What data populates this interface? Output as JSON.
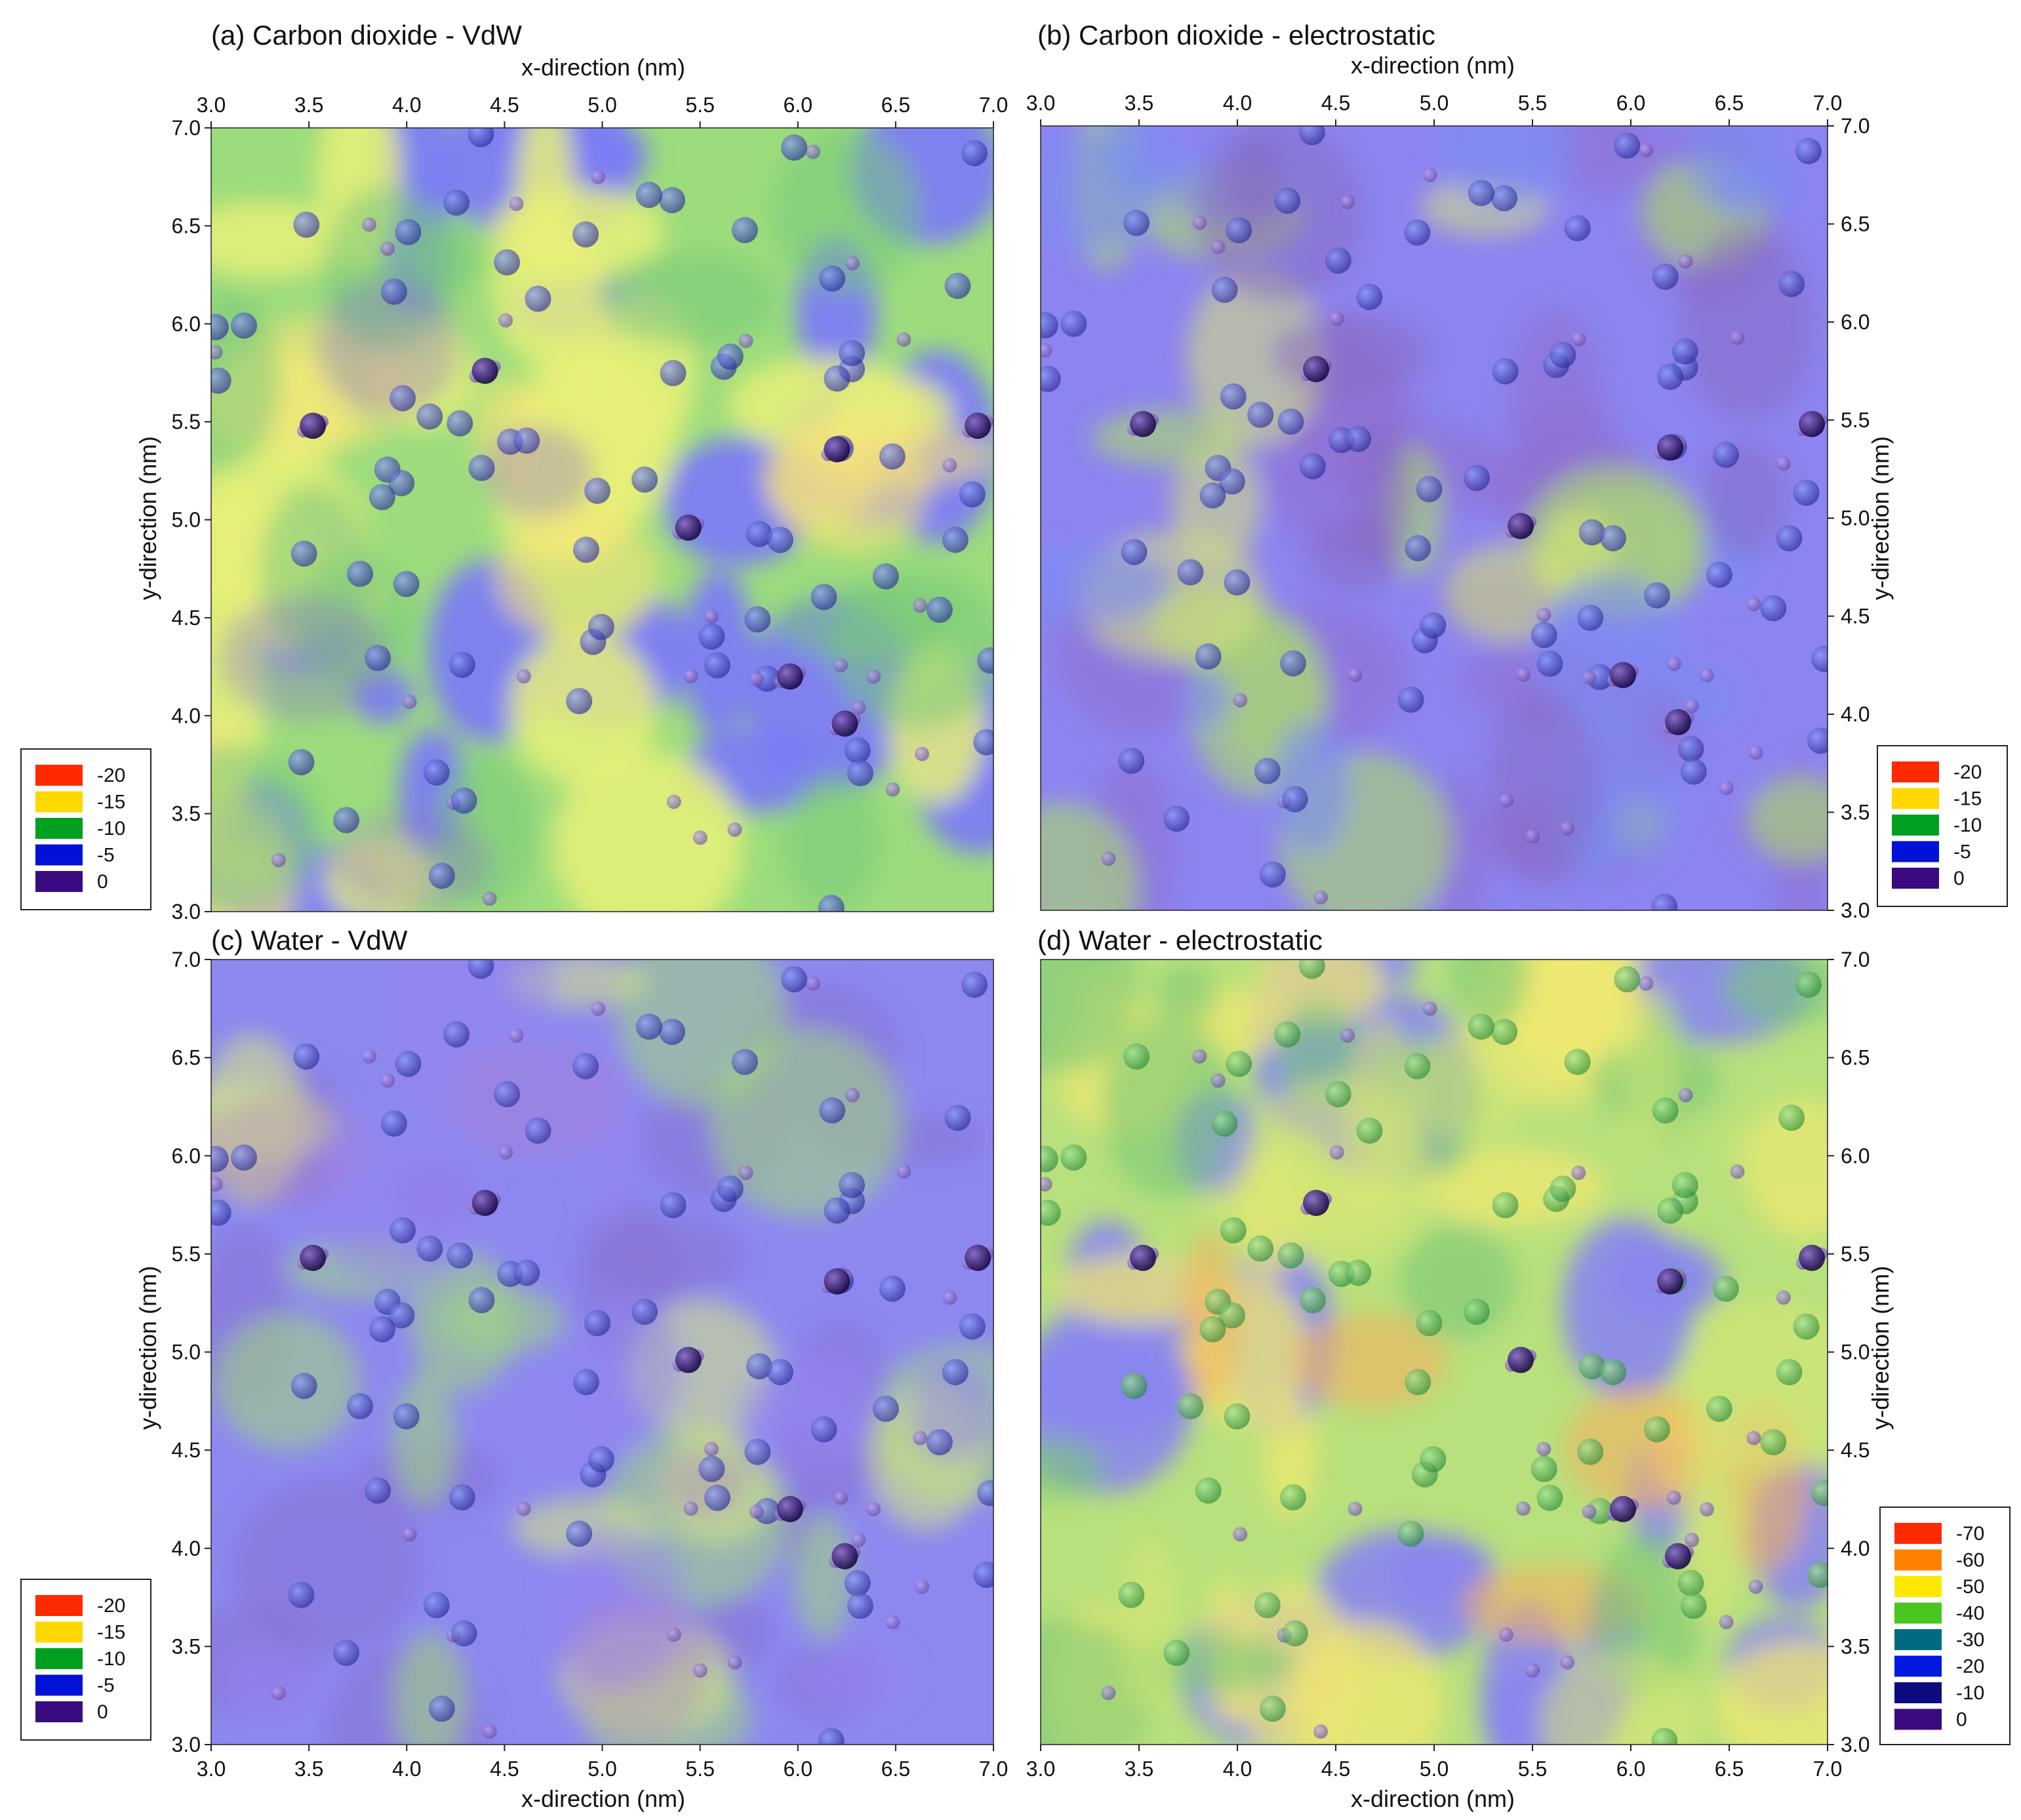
{
  "figure": {
    "panels": [
      {
        "id": "a",
        "title": "(a) Carbon dioxide - VdW",
        "top_xlabel": "x-direction (nm)",
        "bottom_xlabel": "",
        "left_ylabel": "y-direction (nm)",
        "right_ylabel": ""
      },
      {
        "id": "b",
        "title": "(b) Carbon dioxide - electrostatic",
        "top_xlabel": "x-direction (nm)",
        "bottom_xlabel": "",
        "left_ylabel": "",
        "right_ylabel": "y-direction (nm)"
      },
      {
        "id": "c",
        "title": "(c) Water - VdW",
        "top_xlabel": "",
        "bottom_xlabel": "x-direction (nm)",
        "left_ylabel": "y-direction (nm)",
        "right_ylabel": ""
      },
      {
        "id": "d",
        "title": "(d) Water - electrostatic",
        "top_xlabel": "",
        "bottom_xlabel": "x-direction (nm)",
        "left_ylabel": "",
        "right_ylabel": "y-direction (nm)"
      }
    ],
    "tick_labels": [
      "3.0",
      "3.5",
      "4.0",
      "4.5",
      "5.0",
      "5.5",
      "6.0",
      "6.5",
      "7.0"
    ],
    "legends": {
      "vdw": [
        {
          "label": "-20",
          "color": "#ff2a00"
        },
        {
          "label": "-15",
          "color": "#ffd800"
        },
        {
          "label": "-10",
          "color": "#00a020"
        },
        {
          "label": "-5",
          "color": "#0012d8"
        },
        {
          "label": "0",
          "color": "#3a0a80"
        }
      ],
      "water_es": [
        {
          "label": "-70",
          "color": "#ff2a00"
        },
        {
          "label": "-60",
          "color": "#ff8000"
        },
        {
          "label": "-50",
          "color": "#ffe800"
        },
        {
          "label": "-40",
          "color": "#48c81e"
        },
        {
          "label": "-30",
          "color": "#006a80"
        },
        {
          "label": "-20",
          "color": "#0018e0"
        },
        {
          "label": "-10",
          "color": "#0c0c80"
        },
        {
          "label": "0",
          "color": "#3a0a80"
        }
      ]
    }
  },
  "chart_data": [
    {
      "type": "heatmap",
      "title": "(a) Carbon dioxide - VdW",
      "xlabel": "x-direction (nm)",
      "ylabel": "y-direction (nm)",
      "xlim": [
        3.0,
        7.0
      ],
      "ylim": [
        3.0,
        7.0
      ],
      "xticks": [
        3.0,
        3.5,
        4.0,
        4.5,
        5.0,
        5.5,
        6.0,
        6.5,
        7.0
      ],
      "yticks": [
        3.0,
        3.5,
        4.0,
        4.5,
        5.0,
        5.5,
        6.0,
        6.5,
        7.0
      ],
      "colorbar": {
        "levels": [
          -20,
          -15,
          -10,
          -5,
          0
        ],
        "colors": [
          "#ff2a00",
          "#ffd800",
          "#00a020",
          "#0012d8",
          "#3a0a80"
        ]
      },
      "colorbar_position": "left",
      "dominant_range": [
        -15,
        -5
      ]
    },
    {
      "type": "heatmap",
      "title": "(b) Carbon dioxide - electrostatic",
      "xlabel": "x-direction (nm)",
      "ylabel": "y-direction (nm)",
      "xlim": [
        3.0,
        7.0
      ],
      "ylim": [
        3.0,
        7.0
      ],
      "xticks": [
        3.0,
        3.5,
        4.0,
        4.5,
        5.0,
        5.5,
        6.0,
        6.5,
        7.0
      ],
      "yticks": [
        3.0,
        3.5,
        4.0,
        4.5,
        5.0,
        5.5,
        6.0,
        6.5,
        7.0
      ],
      "colorbar": {
        "levels": [
          -20,
          -15,
          -10,
          -5,
          0
        ],
        "colors": [
          "#ff2a00",
          "#ffd800",
          "#00a020",
          "#0012d8",
          "#3a0a80"
        ]
      },
      "colorbar_position": "right",
      "dominant_range": [
        -10,
        0
      ]
    },
    {
      "type": "heatmap",
      "title": "(c) Water - VdW",
      "xlabel": "x-direction (nm)",
      "ylabel": "y-direction (nm)",
      "xlim": [
        3.0,
        7.0
      ],
      "ylim": [
        3.0,
        7.0
      ],
      "xticks": [
        3.0,
        3.5,
        4.0,
        4.5,
        5.0,
        5.5,
        6.0,
        6.5,
        7.0
      ],
      "yticks": [
        3.0,
        3.5,
        4.0,
        4.5,
        5.0,
        5.5,
        6.0,
        6.5,
        7.0
      ],
      "colorbar": {
        "levels": [
          -20,
          -15,
          -10,
          -5,
          0
        ],
        "colors": [
          "#ff2a00",
          "#ffd800",
          "#00a020",
          "#0012d8",
          "#3a0a80"
        ]
      },
      "colorbar_position": "left",
      "dominant_range": [
        -10,
        0
      ]
    },
    {
      "type": "heatmap",
      "title": "(d) Water - electrostatic",
      "xlabel": "x-direction (nm)",
      "ylabel": "y-direction (nm)",
      "xlim": [
        3.0,
        7.0
      ],
      "ylim": [
        3.0,
        7.0
      ],
      "xticks": [
        3.0,
        3.5,
        4.0,
        4.5,
        5.0,
        5.5,
        6.0,
        6.5,
        7.0
      ],
      "yticks": [
        3.0,
        3.5,
        4.0,
        4.5,
        5.0,
        5.5,
        6.0,
        6.5,
        7.0
      ],
      "colorbar": {
        "levels": [
          -70,
          -60,
          -50,
          -40,
          -30,
          -20,
          -10,
          0
        ],
        "colors": [
          "#ff2a00",
          "#ff8000",
          "#ffe800",
          "#48c81e",
          "#006a80",
          "#0018e0",
          "#0c0c80",
          "#3a0a80"
        ]
      },
      "colorbar_position": "right",
      "dominant_range": [
        -50,
        -20
      ]
    }
  ]
}
